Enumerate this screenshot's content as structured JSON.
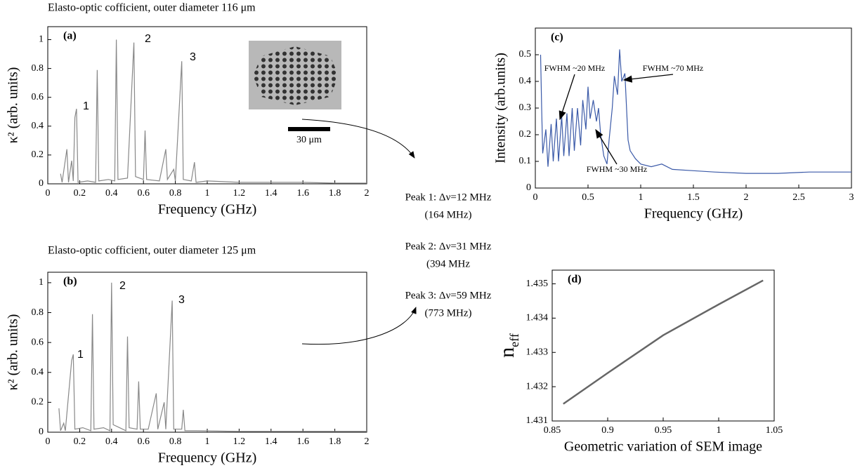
{
  "chart_data": [
    {
      "type": "line",
      "panel": "(a)",
      "title": "Elasto-optic cofficient, outer diameter 116 μm",
      "xlabel": "Frequency (GHz)",
      "ylabel": "κ² (arb. units)",
      "xlim": [
        0,
        2
      ],
      "xticks": [
        0,
        0.2,
        0.4,
        0.6,
        0.8,
        1,
        1.2,
        1.4,
        1.6,
        1.8,
        2
      ],
      "ylim": [
        0,
        1.09
      ],
      "yticks": [
        0,
        0.2,
        0.4,
        0.6,
        0.8,
        1
      ],
      "grid": false,
      "series": [
        {
          "color": "#888888",
          "x": [
            0.08,
            0.09,
            0.12,
            0.13,
            0.15,
            0.16,
            0.17,
            0.18,
            0.19,
            0.25,
            0.3,
            0.31,
            0.32,
            0.38,
            0.42,
            0.43,
            0.44,
            0.5,
            0.54,
            0.55,
            0.6,
            0.61,
            0.62,
            0.7,
            0.74,
            0.75,
            0.79,
            0.8,
            0.84,
            0.85,
            0.9,
            0.92,
            0.93,
            1.0,
            1.2,
            1.4,
            1.6,
            1.8,
            2.0
          ],
          "values": [
            0.07,
            0.01,
            0.24,
            0.01,
            0.16,
            0.02,
            0.46,
            0.52,
            0.01,
            0.02,
            0.01,
            0.79,
            0.02,
            0.03,
            0.02,
            1.0,
            0.03,
            0.04,
            0.98,
            0.05,
            0.03,
            0.37,
            0.03,
            0.02,
            0.24,
            0.03,
            0.1,
            0.02,
            0.85,
            0.03,
            0.02,
            0.15,
            0.01,
            0.02,
            0.01,
            0.01,
            0.01,
            0.005,
            0.005
          ]
        }
      ],
      "annotations": [
        "1",
        "2",
        "3"
      ],
      "inset_scale": "30 μm"
    },
    {
      "type": "line",
      "panel": "(b)",
      "title": "Elasto-optic cofficient, outer diameter 125 μm",
      "xlabel": "Frequency (GHz)",
      "ylabel": "κ² (arb. units)",
      "xlim": [
        0,
        2
      ],
      "xticks": [
        0,
        0.2,
        0.4,
        0.6,
        0.8,
        1,
        1.2,
        1.4,
        1.6,
        1.8,
        2
      ],
      "ylim": [
        0,
        1.07
      ],
      "yticks": [
        0,
        0.2,
        0.4,
        0.6,
        0.8,
        1
      ],
      "grid": false,
      "series": [
        {
          "color": "#888888",
          "x": [
            0.07,
            0.08,
            0.1,
            0.11,
            0.15,
            0.16,
            0.17,
            0.22,
            0.27,
            0.28,
            0.29,
            0.35,
            0.39,
            0.4,
            0.41,
            0.45,
            0.49,
            0.5,
            0.51,
            0.56,
            0.57,
            0.58,
            0.63,
            0.68,
            0.69,
            0.73,
            0.74,
            0.78,
            0.79,
            0.84,
            0.85,
            0.86,
            0.93,
            1.2,
            1.6,
            2.0
          ],
          "values": [
            0.16,
            0.01,
            0.06,
            0.01,
            0.48,
            0.52,
            0.02,
            0.03,
            0.01,
            0.79,
            0.02,
            0.03,
            0.01,
            1.0,
            0.05,
            0.03,
            0.01,
            0.64,
            0.03,
            0.02,
            0.34,
            0.02,
            0.02,
            0.26,
            0.02,
            0.2,
            0.02,
            0.88,
            0.02,
            0.02,
            0.15,
            0.01,
            0.01,
            0.005,
            0.005,
            0.005
          ]
        }
      ],
      "annotations": [
        "1",
        "2",
        "3"
      ]
    },
    {
      "type": "line",
      "panel": "(c)",
      "xlabel": "Frequency (GHz)",
      "ylabel": "Intensity (arb.units)",
      "xlim": [
        0,
        3
      ],
      "xticks": [
        0,
        0.5,
        1,
        1.5,
        2,
        2.5,
        3
      ],
      "ylim": [
        0,
        0.6
      ],
      "yticks": [
        0,
        0.1,
        0.2,
        0.3,
        0.4,
        0.5
      ],
      "grid": false,
      "series": [
        {
          "color": "#3b5aa8",
          "x": [
            0.05,
            0.06,
            0.07,
            0.1,
            0.12,
            0.15,
            0.17,
            0.2,
            0.22,
            0.25,
            0.27,
            0.3,
            0.32,
            0.35,
            0.37,
            0.4,
            0.43,
            0.45,
            0.48,
            0.5,
            0.52,
            0.55,
            0.58,
            0.6,
            0.62,
            0.65,
            0.68,
            0.7,
            0.73,
            0.75,
            0.78,
            0.8,
            0.82,
            0.85,
            0.88,
            0.9,
            0.95,
            1.0,
            1.1,
            1.2,
            1.3,
            1.5,
            1.7,
            2.0,
            2.3,
            2.6,
            3.0
          ],
          "values": [
            0.5,
            0.3,
            0.13,
            0.22,
            0.08,
            0.24,
            0.1,
            0.26,
            0.1,
            0.27,
            0.12,
            0.28,
            0.12,
            0.3,
            0.14,
            0.3,
            0.16,
            0.33,
            0.22,
            0.38,
            0.26,
            0.33,
            0.25,
            0.3,
            0.2,
            0.12,
            0.09,
            0.18,
            0.3,
            0.42,
            0.35,
            0.52,
            0.4,
            0.43,
            0.18,
            0.14,
            0.11,
            0.09,
            0.08,
            0.09,
            0.07,
            0.065,
            0.06,
            0.055,
            0.055,
            0.06,
            0.06
          ]
        }
      ],
      "annotations": [
        "FWHM ~20 MHz",
        "FWHM ~70 MHz",
        "FWHM ~30 MHz"
      ]
    },
    {
      "type": "line",
      "panel": "(d)",
      "xlabel": "Geometric variation of SEM image",
      "ylabel": "n",
      "ylabel_subscript": "eff",
      "xlim": [
        0.85,
        1.05
      ],
      "xticks": [
        0.85,
        0.9,
        0.95,
        1,
        1.05
      ],
      "ylim": [
        1.431,
        1.4354
      ],
      "yticks": [
        1.431,
        1.432,
        1.433,
        1.434,
        1.435
      ],
      "grid": false,
      "series": [
        {
          "color": "#666666",
          "x": [
            0.86,
            0.9,
            0.95,
            1,
            1.04
          ],
          "values": [
            1.4315,
            1.4324,
            1.4335,
            1.4344,
            1.4351
          ]
        }
      ]
    }
  ],
  "peak_notes": [
    "Peak 1: Δν=12 MHz",
    "(164 MHz)",
    "Peak 2: Δν=31 MHz",
    "(394 MHz",
    "Peak 3: Δν=59 MHz",
    "(773 MHz)"
  ]
}
